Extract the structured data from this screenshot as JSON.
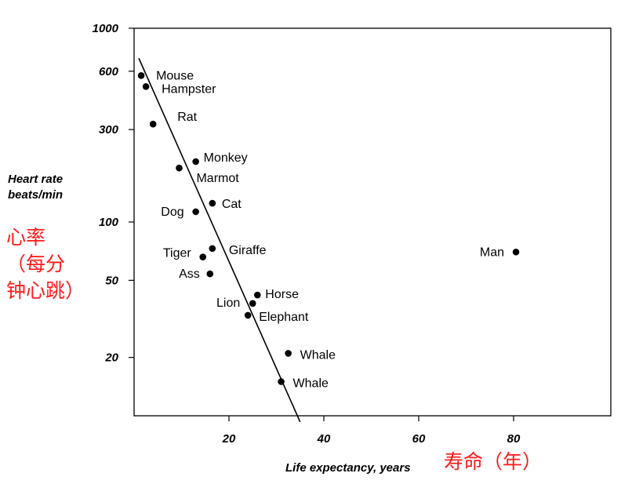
{
  "chart_data": {
    "type": "scatter",
    "xlabel": "Life expectancy, years",
    "ylabel": [
      "Heart rate",
      "beats/min"
    ],
    "xlim": [
      0,
      100
    ],
    "ylim": [
      10,
      1000
    ],
    "y_scale": "log",
    "x_ticks": [
      20,
      40,
      60,
      80
    ],
    "y_ticks": [
      20,
      50,
      100,
      300,
      600,
      1000
    ],
    "grid": false,
    "points": [
      {
        "label": "Mouse",
        "x": 1.5,
        "y": 570
      },
      {
        "label": "Hampster",
        "x": 2.5,
        "y": 500
      },
      {
        "label": "Rat",
        "x": 4,
        "y": 320
      },
      {
        "label": "Monkey",
        "x": 13,
        "y": 205
      },
      {
        "label": "Marmot",
        "x": 9.5,
        "y": 190
      },
      {
        "label": "Cat",
        "x": 16.5,
        "y": 125
      },
      {
        "label": "Dog",
        "x": 13,
        "y": 113
      },
      {
        "label": "Giraffe",
        "x": 16.5,
        "y": 73
      },
      {
        "label": "Tiger",
        "x": 14.5,
        "y": 66
      },
      {
        "label": "Ass",
        "x": 16,
        "y": 54
      },
      {
        "label": "Horse",
        "x": 26,
        "y": 42
      },
      {
        "label": "Lion",
        "x": 25,
        "y": 38
      },
      {
        "label": "Elephant",
        "x": 24,
        "y": 33
      },
      {
        "label": "Whale",
        "x": 32.5,
        "y": 21
      },
      {
        "label": "Whale",
        "x": 31,
        "y": 15
      },
      {
        "label": "Man",
        "x": 80.5,
        "y": 70
      }
    ],
    "trend_line": {
      "x": [
        1,
        35
      ],
      "y": [
        700,
        9.3
      ]
    }
  },
  "annotations": {
    "y_chinese": [
      "心率",
      "（每分",
      "钟心跳）"
    ],
    "x_chinese": "寿命（年）"
  }
}
